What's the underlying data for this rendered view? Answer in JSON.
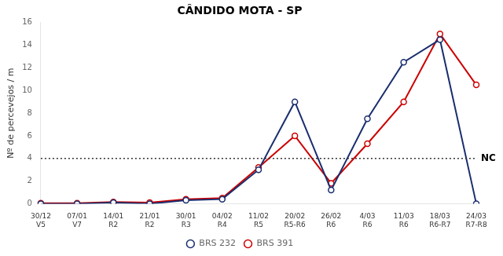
{
  "chart_data": {
    "type": "line",
    "title": "CÂNDIDO MOTA - SP",
    "ylabel": "Nº de percevejos / m",
    "categories": [
      [
        "30/12",
        "V5"
      ],
      [
        "07/01",
        "V7"
      ],
      [
        "14/01",
        "R2"
      ],
      [
        "21/01",
        "R2"
      ],
      [
        "30/01",
        "R3"
      ],
      [
        "04/02",
        "R4"
      ],
      [
        "11/02",
        "R5"
      ],
      [
        "20/02",
        "R5-R6"
      ],
      [
        "26/02",
        "R6"
      ],
      [
        "4/03",
        "R6"
      ],
      [
        "11/03",
        "R6"
      ],
      [
        "18/03",
        "R6-R7"
      ],
      [
        "24/03",
        "R7-R8"
      ]
    ],
    "series": [
      {
        "name": "BRS 232",
        "color": "#1a2e6e",
        "marker": "circle",
        "values": [
          0.0,
          0.0,
          0.1,
          0.0,
          0.3,
          0.4,
          3.0,
          9.0,
          1.2,
          7.5,
          12.5,
          14.5,
          0.0
        ]
      },
      {
        "name": "BRS 391",
        "color": "#cc0000",
        "marker": "circle",
        "values": [
          0.05,
          0.05,
          0.15,
          0.1,
          0.4,
          0.5,
          3.2,
          6.0,
          1.8,
          5.3,
          9.0,
          15.0,
          10.5
        ]
      }
    ],
    "annotations": [
      {
        "text": "NC",
        "y": 4,
        "color": "#333333",
        "line_style": "dotted"
      }
    ],
    "ylim": [
      0,
      16
    ],
    "yticks": [
      0,
      2,
      4,
      6,
      8,
      10,
      12,
      14,
      16
    ],
    "grid": false,
    "legend": "bottom"
  }
}
